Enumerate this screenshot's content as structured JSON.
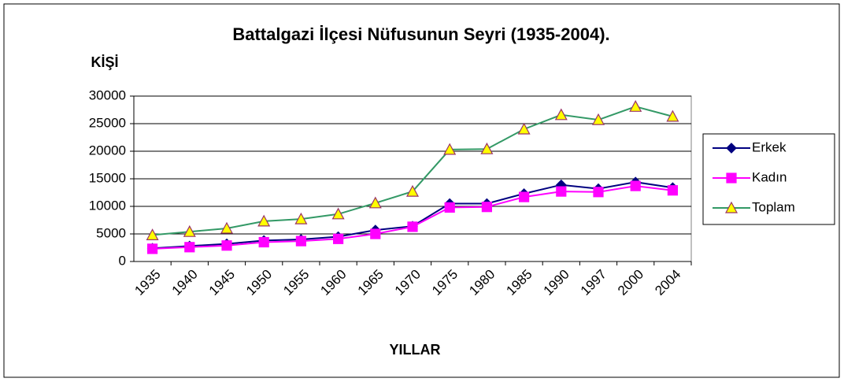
{
  "chart_data": {
    "type": "line",
    "title": "Battalgazi İlçesi Nüfusunun Seyri (1935-2004).",
    "y_label": "KİŞİ",
    "x_label": "YILLAR",
    "categories": [
      "1935",
      "1940",
      "1945",
      "1950",
      "1955",
      "1960",
      "1965",
      "1970",
      "1975",
      "1980",
      "1985",
      "1990",
      "1997",
      "2000",
      "2004"
    ],
    "series": [
      {
        "name": "Erkek",
        "color": "#000080",
        "marker": "diamond",
        "marker_fill": "#000080",
        "marker_stroke": "#000080",
        "values": [
          2400,
          2800,
          3200,
          3800,
          4000,
          4500,
          5700,
          6400,
          10500,
          10500,
          12300,
          13900,
          13200,
          14400,
          13400
        ]
      },
      {
        "name": "Kadın",
        "color": "#ff00ff",
        "marker": "square",
        "marker_fill": "#ff00ff",
        "marker_stroke": "#ff00ff",
        "values": [
          2300,
          2600,
          2900,
          3500,
          3700,
          4100,
          5000,
          6300,
          9800,
          9900,
          11700,
          12700,
          12600,
          13700,
          12900
        ]
      },
      {
        "name": "Toplam",
        "color": "#339966",
        "marker": "triangle",
        "marker_fill": "#ffff00",
        "marker_stroke": "#993366",
        "values": [
          4800,
          5400,
          6000,
          7300,
          7700,
          8600,
          10600,
          12700,
          20300,
          20400,
          24000,
          26600,
          25700,
          28100,
          26300
        ]
      }
    ],
    "ylim": [
      0,
      30000
    ],
    "yticks": [
      0,
      5000,
      10000,
      15000,
      20000,
      25000,
      30000
    ],
    "grid": true,
    "legend": "right"
  }
}
